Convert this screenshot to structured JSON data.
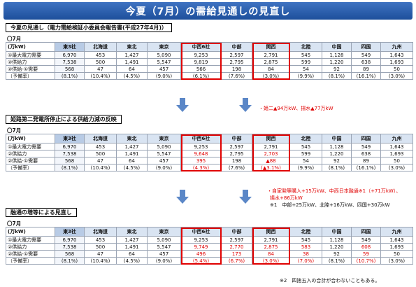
{
  "page_title": "今夏（7月）の需給見通しの見直し",
  "columns": [
    "(万kW)",
    "東3社",
    "北海道",
    "東北",
    "東京",
    "中西6社",
    "中部",
    "関西",
    "北陸",
    "中国",
    "四国",
    "九州",
    "9電力"
  ],
  "row_labels": [
    "①最大電力需要",
    "②供給力",
    "②供給-①需要",
    "（予備率）"
  ],
  "sections": [
    {
      "title": "今夏の見通し（電力需給検証小委員会報告書(平成27年4月)）",
      "month": "〇7月",
      "demand": [
        "6,970",
        "453",
        "1,427",
        "5,090",
        "9,253",
        "2,597",
        "2,791",
        "545",
        "1,128",
        "549",
        "1,643",
        "16,223"
      ],
      "supply": [
        "7,538",
        "500",
        "1,491",
        "5,547",
        "9,819",
        "2,795",
        "2,875",
        "599",
        "1,220",
        "638",
        "1,693",
        "17,357"
      ],
      "margin": [
        "568",
        "47",
        "64",
        "457",
        "566",
        "198",
        "84",
        "54",
        "92",
        "89",
        "50",
        "1,134"
      ],
      "rate": [
        "(8.1%)",
        "(10.4%)",
        "(4.5%)",
        "(9.0%)",
        "(6.1%)",
        "(7.6%)",
        "(3.0%)",
        "(9.9%)",
        "(8.1%)",
        "(16.1%)",
        "(3.0%)",
        "(7.0%)"
      ],
      "red_supply": [],
      "red_margin": []
    },
    {
      "title": "姫路第二発電所停止による供給力減の反映",
      "month": "〇7月",
      "demand": [
        "6,970",
        "453",
        "1,427",
        "5,090",
        "9,253",
        "2,597",
        "2,791",
        "545",
        "1,128",
        "549",
        "1,643",
        "16,223"
      ],
      "supply": [
        "7,538",
        "500",
        "1,491",
        "5,547",
        "9,648",
        "2,795",
        "2,703",
        "599",
        "1,220",
        "638",
        "1,693",
        "17,186"
      ],
      "margin": [
        "568",
        "47",
        "64",
        "457",
        "395",
        "198",
        "▲88",
        "54",
        "92",
        "89",
        "50",
        "963"
      ],
      "rate": [
        "(8.1%)",
        "(10.4%)",
        "(4.5%)",
        "(9.0%)",
        "(4.3%)",
        "(7.6%)",
        "(▲3.1%)",
        "(9.9%)",
        "(8.1%)",
        "(16.1%)",
        "(3.0%)",
        "(5.9%)"
      ],
      "red_supply": [
        4,
        6,
        11
      ],
      "red_margin": [
        4,
        6,
        11
      ]
    },
    {
      "title": "融通の増等による見直し",
      "month": "〇7月",
      "demand": [
        "6,970",
        "453",
        "1,427",
        "5,090",
        "9,253",
        "2,597",
        "2,791",
        "545",
        "1,128",
        "549",
        "1,643",
        "16,223"
      ],
      "supply": [
        "7,538",
        "500",
        "1,491",
        "5,547",
        "9,749",
        "2,770",
        "2,875",
        "583",
        "1,220",
        "608",
        "1,693",
        "17,287"
      ],
      "margin": [
        "568",
        "47",
        "64",
        "457",
        "496",
        "173",
        "84",
        "38",
        "92",
        "59",
        "50",
        "1,064"
      ],
      "rate": [
        "(8.1%)",
        "(10.4%)",
        "(4.5%)",
        "(9.0%)",
        "(5.4%)",
        "(6.7%)",
        "(3.0%)",
        "(7.0%)",
        "(8.1%)",
        "(10.7%)",
        "(3.0%)",
        "(6.6%)"
      ],
      "red_supply": [
        4,
        5,
        6,
        7,
        9,
        11
      ],
      "red_margin": [
        4,
        5,
        6,
        7,
        9,
        11
      ]
    }
  ],
  "notes": {
    "note1": "・姫二▲94万kW、揚水▲77万kW",
    "note2a": "・自家発等購入+15万kW、中西日本融通※1（+71万kW）、",
    "note2b": "揚水+86万kW",
    "note2c": "※1　中部+25万kW、北陸+16万kW、四国+30万kW",
    "footnote": "※2　四捨五入の合計が合わないこともある。"
  }
}
